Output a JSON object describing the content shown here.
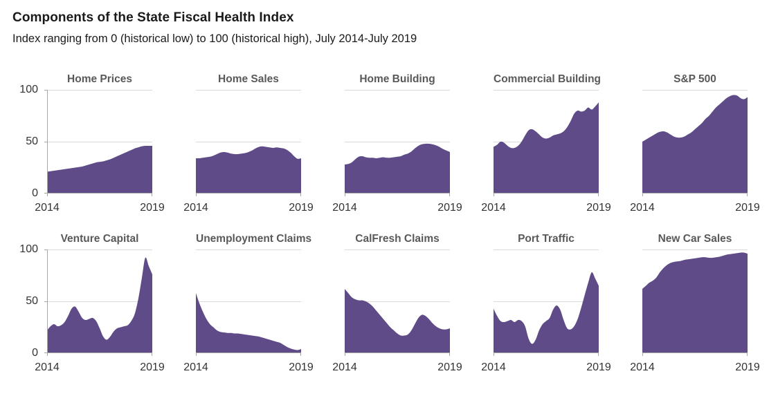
{
  "header": {
    "title": "Components of the State Fiscal Health Index",
    "subtitle": "Index ranging from 0 (historical low) to 100 (historical high), July 2014-July 2019"
  },
  "colors": {
    "area_fill": "#5E4B87",
    "gridline": "#D9D9D9",
    "axis": "#A6A6A6",
    "chart_title": "#595959",
    "axis_label": "#333333",
    "title_text": "#1A1A1A"
  },
  "chart_data": {
    "type": "area",
    "title": "Components of the State Fiscal Health Index",
    "subtitle": "Index ranging from 0 (historical low) to 100 (historical high), July 2014-July 2019",
    "layout": "small multiples, 2 rows x 5 columns; horizontal gridlines at 50 and 100; y-axis line only on first chart of each row; x ticks at 2014 and 2019",
    "x_ticks": [
      "2014",
      "2019"
    ],
    "y_ticks": [
      "100",
      "50",
      "0"
    ],
    "ylim": [
      0,
      100
    ],
    "x_range": "July 2014 - July 2019",
    "fill_color": "#5E4B87",
    "charts": [
      {
        "name": "Home Prices",
        "values": [
          21,
          21.5,
          22,
          22.5,
          23,
          23.5,
          24,
          24.5,
          25,
          25.5,
          26,
          27,
          28,
          29,
          30,
          30.5,
          31,
          32,
          33,
          34.5,
          36,
          37.5,
          39,
          40.5,
          42,
          43.5,
          44.5,
          45.5,
          46,
          46,
          46
        ]
      },
      {
        "name": "Home Sales",
        "values": [
          34,
          34,
          34.5,
          35,
          35.5,
          36.5,
          38,
          39.5,
          40,
          39.5,
          38.5,
          38,
          38,
          38.5,
          39,
          40,
          41.5,
          43.5,
          45,
          45.5,
          45,
          44.5,
          44,
          44.5,
          44,
          43.5,
          42,
          39.5,
          36,
          33.5,
          34
        ]
      },
      {
        "name": "Home Building",
        "values": [
          28,
          28.5,
          30,
          33,
          35.5,
          36,
          35,
          34.5,
          34.5,
          34,
          34.5,
          35,
          34.5,
          34.5,
          35,
          35.5,
          36,
          37.5,
          38.5,
          40.5,
          43.5,
          46,
          47.5,
          48,
          48,
          47.5,
          46.5,
          45,
          43,
          41.5,
          40
        ]
      },
      {
        "name": "Commercial Building",
        "values": [
          45,
          47,
          50,
          49,
          46,
          44,
          44,
          46,
          50,
          56,
          61,
          62,
          60,
          57,
          54,
          53,
          54,
          56,
          57,
          58,
          60,
          64,
          70,
          77,
          80,
          79,
          80,
          83,
          81,
          84,
          88
        ]
      },
      {
        "name": "S&P 500",
        "values": [
          50,
          52,
          54,
          56,
          58,
          59.5,
          60,
          59,
          57,
          55,
          54,
          54,
          55,
          57,
          59,
          62,
          65,
          68,
          72,
          75,
          79,
          83,
          86,
          89,
          92,
          94,
          95,
          94.5,
          92,
          91,
          93
        ]
      },
      {
        "name": "Venture Capital",
        "values": [
          22,
          26,
          28,
          26,
          27,
          30,
          36,
          43,
          45,
          40,
          34,
          32,
          33,
          34,
          31,
          24,
          16,
          13,
          16,
          21,
          24,
          25,
          26,
          27,
          31,
          38,
          52,
          72,
          92,
          84,
          76
        ]
      },
      {
        "name": "Unemployment Claims",
        "values": [
          58,
          48,
          40,
          33,
          28,
          25,
          22,
          20.5,
          20,
          19.5,
          19.5,
          19,
          19,
          18.5,
          18,
          17.5,
          17,
          16.5,
          16,
          15,
          14,
          13,
          12,
          11,
          10,
          8,
          6,
          4.5,
          3.5,
          3,
          4
        ]
      },
      {
        "name": "CalFresh Claims",
        "values": [
          62,
          58,
          54,
          52,
          51,
          51,
          50,
          48,
          45,
          41,
          37,
          33,
          29,
          25,
          22,
          19,
          17,
          17,
          18,
          22,
          28,
          34,
          37,
          36,
          33,
          29,
          26,
          24,
          23,
          23,
          24
        ]
      },
      {
        "name": "Port Traffic",
        "values": [
          43,
          36,
          31,
          30,
          31,
          32,
          30,
          32,
          31,
          26,
          14,
          9,
          13,
          22,
          28,
          31,
          34,
          42,
          46,
          42,
          32,
          24,
          23,
          26,
          33,
          44,
          56,
          68,
          78,
          72,
          65
        ]
      },
      {
        "name": "New Car Sales",
        "values": [
          62,
          65,
          68,
          70,
          73,
          78,
          82,
          85,
          87,
          88,
          88.5,
          89,
          90,
          90.5,
          91,
          91.5,
          92,
          92.5,
          92.5,
          92,
          92,
          92.5,
          93,
          94,
          95,
          95.5,
          96,
          96.5,
          97,
          97,
          96
        ]
      }
    ]
  }
}
